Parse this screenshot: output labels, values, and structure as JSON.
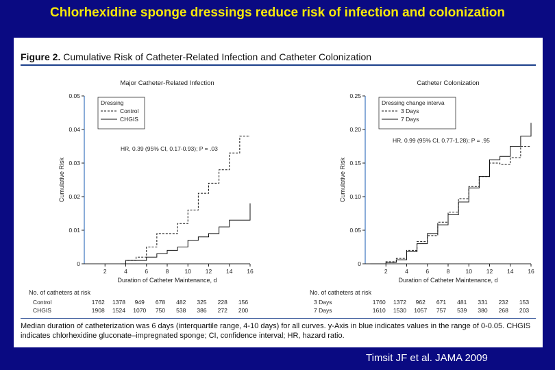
{
  "slide": {
    "title": "Chlorhexidine sponge dressings reduce risk of infection and colonization",
    "citation": "Timsit JF et al. JAMA 2009"
  },
  "figure": {
    "label": "Figure 2.",
    "title": "Cumulative Risk of Catheter-Related Infection and Catheter Colonization",
    "caption": "Median duration of catheterization was 6 days (interquartile range, 4-10 days) for all curves. y-Axis in blue indicates values in the range of 0-0.05. CHGIS indicates chlorhexidine gluconate–impregnated sponge; CI, confidence interval; HR, hazard ratio.",
    "colors": {
      "axis_highlight": "#4a7fc4",
      "rule": "#1a3e8a",
      "background": "#0a0a82",
      "title": "#f6e80a"
    }
  },
  "chart_data": [
    {
      "type": "line",
      "step": true,
      "title": "Major Catheter-Related Infection",
      "xlabel": "Duration of Catheter Maintenance, d",
      "ylabel": "Cumulative Risk",
      "xlim": [
        0,
        16
      ],
      "ylim": [
        0,
        0.05
      ],
      "xticks": [
        "2",
        "4",
        "6",
        "8",
        "10",
        "12",
        "14",
        "16"
      ],
      "yticks": [
        "0",
        "0.01",
        "0.02",
        "0.03",
        "0.04",
        "0.05"
      ],
      "legend_title": "Dressing",
      "legend_position": "top-left",
      "annotation": "HR, 0.39 (95% CI, 0.17-0.93); P = .03",
      "series": [
        {
          "name": "Control",
          "style": "dashed",
          "x": [
            3.5,
            4,
            5,
            6,
            7,
            8,
            9,
            10,
            11,
            12,
            13,
            14,
            15,
            16
          ],
          "y": [
            0.0,
            0.001,
            0.002,
            0.005,
            0.009,
            0.009,
            0.012,
            0.016,
            0.021,
            0.024,
            0.028,
            0.033,
            0.038,
            0.038
          ]
        },
        {
          "name": "CHGIS",
          "style": "solid",
          "x": [
            3.5,
            4,
            5,
            6,
            7,
            8,
            9,
            10,
            11,
            12,
            13,
            14,
            15,
            16
          ],
          "y": [
            0.0,
            0.001,
            0.001,
            0.002,
            0.003,
            0.004,
            0.005,
            0.007,
            0.008,
            0.009,
            0.011,
            0.013,
            0.013,
            0.018
          ]
        }
      ],
      "at_risk": {
        "header": "No. of catheters at risk",
        "rows": [
          {
            "label": "Control",
            "values": [
              "1762",
              "1378",
              "949",
              "678",
              "482",
              "325",
              "228",
              "156"
            ]
          },
          {
            "label": "CHGIS",
            "values": [
              "1908",
              "1524",
              "1070",
              "750",
              "538",
              "386",
              "272",
              "200"
            ]
          }
        ]
      }
    },
    {
      "type": "line",
      "step": true,
      "title": "Catheter Colonization",
      "xlabel": "Duration of Catheter Maintenance, d",
      "ylabel": "Cumulative Risk",
      "xlim": [
        0,
        16
      ],
      "ylim": [
        0,
        0.25
      ],
      "xticks": [
        "2",
        "4",
        "6",
        "8",
        "10",
        "12",
        "14",
        "16"
      ],
      "yticks": [
        "0",
        "0.05",
        "0.10",
        "0.15",
        "0.20",
        "0.25"
      ],
      "legend_title": "Dressing change interva",
      "legend_position": "top-left",
      "annotation": "HR, 0.99 (95% CI, 0.77-1.28); P = .95",
      "series": [
        {
          "name": "3 Days",
          "style": "dashed",
          "x": [
            0.5,
            2,
            3,
            4,
            5,
            6,
            7,
            8,
            9,
            10,
            11,
            12,
            13,
            14,
            15,
            16
          ],
          "y": [
            0.0,
            0.003,
            0.008,
            0.02,
            0.033,
            0.042,
            0.062,
            0.077,
            0.097,
            0.115,
            0.13,
            0.15,
            0.148,
            0.158,
            0.175,
            0.175
          ]
        },
        {
          "name": "7 Days",
          "style": "solid",
          "x": [
            0.5,
            2,
            3,
            4,
            5,
            6,
            7,
            8,
            9,
            10,
            11,
            12,
            13,
            14,
            15,
            16
          ],
          "y": [
            0.0,
            0.002,
            0.006,
            0.018,
            0.03,
            0.045,
            0.058,
            0.073,
            0.092,
            0.113,
            0.13,
            0.155,
            0.16,
            0.175,
            0.19,
            0.21
          ]
        }
      ],
      "at_risk": {
        "header": "No. of catheters at risk",
        "rows": [
          {
            "label": "3 Days",
            "values": [
              "1760",
              "1372",
              "962",
              "671",
              "481",
              "331",
              "232",
              "153"
            ]
          },
          {
            "label": "7 Days",
            "values": [
              "1610",
              "1530",
              "1057",
              "757",
              "539",
              "380",
              "268",
              "203"
            ]
          }
        ]
      }
    }
  ]
}
